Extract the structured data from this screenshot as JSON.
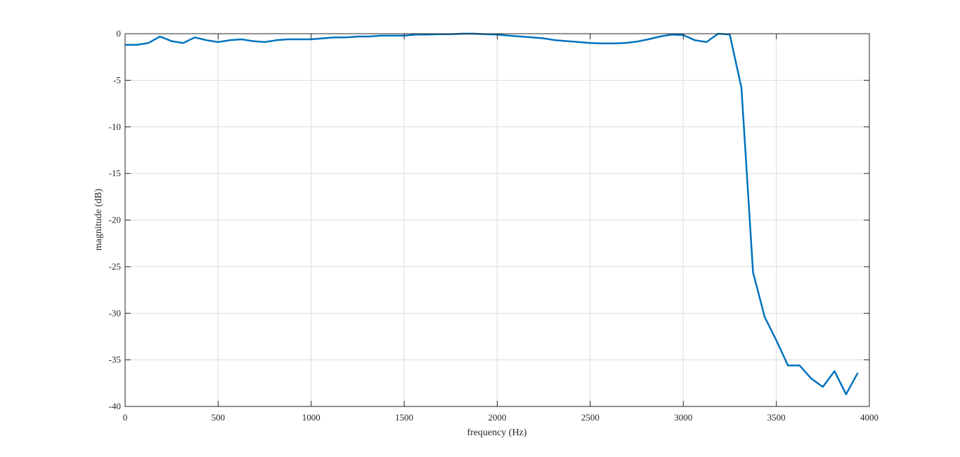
{
  "chart_data": {
    "type": "line",
    "title": "",
    "xlabel": "frequency (Hz)",
    "ylabel": "magnitude (dB)",
    "xlim": [
      0,
      4000
    ],
    "ylim": [
      -40,
      0
    ],
    "xticks": [
      0,
      500,
      1000,
      1500,
      2000,
      2500,
      3000,
      3500,
      4000
    ],
    "xtick_labels": [
      "0",
      "500",
      "1000",
      "1500",
      "2000",
      "2500",
      "3000",
      "3500",
      "4000"
    ],
    "yticks": [
      0,
      -5,
      -10,
      -15,
      -20,
      -25,
      -30,
      -35,
      -40
    ],
    "ytick_labels": [
      "0",
      "-5",
      "-10",
      "-15",
      "-20",
      "-25",
      "-30",
      "-35",
      "-40"
    ],
    "grid": true,
    "line_color": "#0072BD",
    "series": [
      {
        "x": [
          0,
          62.5,
          125,
          187.5,
          250,
          312.5,
          375,
          437.5,
          500,
          562.5,
          625,
          687.5,
          750,
          812.5,
          875,
          937.5,
          1000,
          1062.5,
          1125,
          1187.5,
          1250,
          1312.5,
          1375,
          1437.5,
          1500,
          1562.5,
          1625,
          1687.5,
          1750,
          1812.5,
          1875,
          1937.5,
          2000,
          2062.5,
          2125,
          2187.5,
          2250,
          2312.5,
          2375,
          2437.5,
          2500,
          2562.5,
          2625,
          2687.5,
          2750,
          2812.5,
          2875,
          2937.5,
          3000,
          3062.5,
          3125,
          3187.5,
          3250,
          3312.5,
          3375,
          3437.5,
          3500,
          3562.5,
          3625,
          3687.5,
          3750,
          3812.5,
          3875,
          3937.5
        ],
        "values": [
          -1.2,
          -1.2,
          -1.0,
          -0.3,
          -0.8,
          -1.0,
          -0.4,
          -0.7,
          -0.9,
          -0.7,
          -0.6,
          -0.8,
          -0.9,
          -0.7,
          -0.6,
          -0.6,
          -0.6,
          -0.5,
          -0.4,
          -0.4,
          -0.3,
          -0.3,
          -0.2,
          -0.2,
          -0.2,
          -0.1,
          -0.1,
          -0.05,
          -0.05,
          0,
          0,
          -0.05,
          -0.1,
          -0.2,
          -0.3,
          -0.4,
          -0.5,
          -0.7,
          -0.8,
          -0.9,
          -1.0,
          -1.05,
          -1.05,
          -1.0,
          -0.85,
          -0.6,
          -0.3,
          -0.1,
          -0.15,
          -0.7,
          -0.9,
          0,
          -0.1,
          -5.8,
          -25.6,
          -30.4,
          -32.9,
          -35.6,
          -35.6,
          -37.0,
          -37.9,
          -36.2,
          -38.7,
          -36.4
        ]
      }
    ]
  }
}
